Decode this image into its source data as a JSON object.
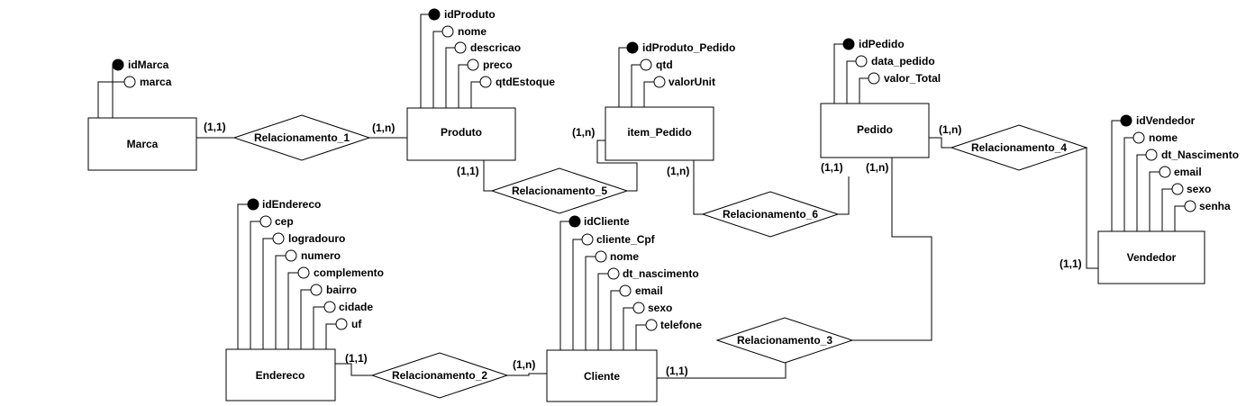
{
  "entities": {
    "marca": "Marca",
    "produto": "Produto",
    "item_pedido": "item_Pedido",
    "pedido": "Pedido",
    "vendedor": "Vendedor",
    "endereco": "Endereco",
    "cliente": "Cliente"
  },
  "relationships": {
    "r1": "Relacionamento_1",
    "r2": "Relacionamento_2",
    "r3": "Relacionamento_3",
    "r4": "Relacionamento_4",
    "r5": "Relacionamento_5",
    "r6": "Relacionamento_6"
  },
  "attributes": {
    "marca": [
      "idMarca",
      "marca"
    ],
    "produto": [
      "idProduto",
      "nome",
      "descricao",
      "preco",
      "qtdEstoque"
    ],
    "item_pedido": [
      "idProduto_Pedido",
      "qtd",
      "valorUnit"
    ],
    "pedido": [
      "idPedido",
      "data_pedido",
      "valor_Total"
    ],
    "vendedor": [
      "idVendedor",
      "nome",
      "dt_Nascimento",
      "email",
      "sexo",
      "senha"
    ],
    "endereco": [
      "idEndereco",
      "cep",
      "logradouro",
      "numero",
      "complemento",
      "bairro",
      "cidade",
      "uf"
    ],
    "cliente": [
      "idCliente",
      "cliente_Cpf",
      "nome",
      "dt_nascimento",
      "email",
      "sexo",
      "telefone"
    ]
  },
  "cardinalities": {
    "marca_r1": "(1,1)",
    "produto_r1": "(1,n)",
    "produto_r5": "(1,1)",
    "item_r5": "(1,n)",
    "item_r6": "(1,n)",
    "pedido_r6": "(1,1)",
    "pedido_r3": "(1,n)",
    "pedido_r4": "(1,n)",
    "vendedor_r4": "(1,1)",
    "endereco_r2": "(1,1)",
    "cliente_r2": "(1,n)",
    "cliente_r3": "(1,1)"
  }
}
